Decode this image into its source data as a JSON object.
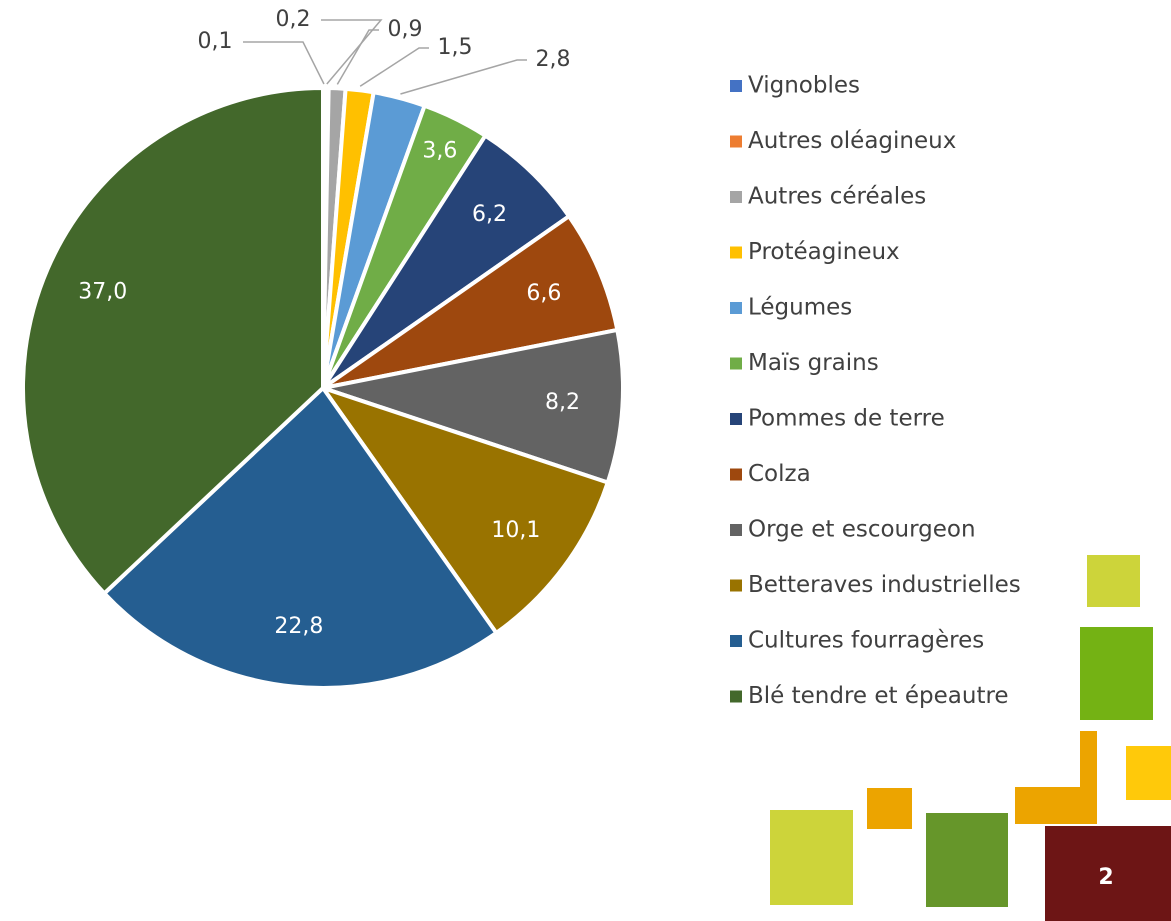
{
  "chart_data": {
    "type": "pie",
    "categories": [
      "Vignobles",
      "Autres oléagineux",
      "Autres céréales",
      "Protéagineux",
      "Légumes",
      "Maïs grains",
      "Pommes de terre",
      "Colza",
      "Orge et escourgeon",
      "Betteraves industrielles",
      "Cultures fourragères",
      "Blé tendre et épeautre"
    ],
    "values": [
      0.1,
      0.2,
      0.9,
      1.5,
      2.8,
      3.6,
      6.2,
      6.6,
      8.2,
      10.1,
      22.8,
      37.0
    ],
    "value_labels": [
      "0,1",
      "0,2",
      "0,9",
      "1,5",
      "2,8",
      "3,6",
      "6,2",
      "6,6",
      "8,2",
      "10,1",
      "22,8",
      "37,0"
    ],
    "colors": [
      "#4472c4",
      "#ed7d31",
      "#a5a5a5",
      "#ffc000",
      "#5b9bd5",
      "#70ad47",
      "#264478",
      "#9e480e",
      "#636363",
      "#997300",
      "#255e91",
      "#43682b"
    ],
    "legend": "right"
  },
  "page_number": "2"
}
